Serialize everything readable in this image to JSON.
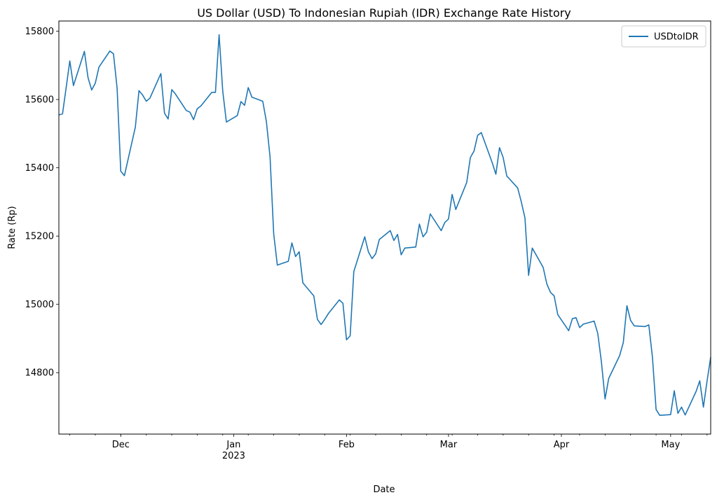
{
  "chart_data": {
    "type": "line",
    "title": "US Dollar (USD) To Indonesian Rupiah (IDR) Exchange Rate History",
    "xlabel": "Date",
    "ylabel": "Rate (Rp)",
    "xlim": [
      "2022-11-14",
      "2023-05-12"
    ],
    "ylim": [
      14620,
      15830
    ],
    "grid": false,
    "legend_position": "top-right",
    "x_ticks": [
      {
        "date": "2022-12-01",
        "label": "Dec",
        "sublabel": ""
      },
      {
        "date": "2023-01-01",
        "label": "Jan",
        "sublabel": "2023"
      },
      {
        "date": "2023-02-01",
        "label": "Feb",
        "sublabel": ""
      },
      {
        "date": "2023-03-01",
        "label": "Mar",
        "sublabel": ""
      },
      {
        "date": "2023-04-01",
        "label": "Apr",
        "sublabel": ""
      },
      {
        "date": "2023-05-01",
        "label": "May",
        "sublabel": ""
      }
    ],
    "y_ticks": [
      14800,
      15000,
      15200,
      15400,
      15600,
      15800
    ],
    "series": [
      {
        "name": "USDtoIDR",
        "color": "#1f77b4",
        "points": [
          [
            "2022-11-14",
            15555
          ],
          [
            "2022-11-15",
            15558
          ],
          [
            "2022-11-16",
            15635
          ],
          [
            "2022-11-17",
            15713
          ],
          [
            "2022-11-18",
            15641
          ],
          [
            "2022-11-21",
            15741
          ],
          [
            "2022-11-22",
            15664
          ],
          [
            "2022-11-23",
            15628
          ],
          [
            "2022-11-24",
            15648
          ],
          [
            "2022-11-25",
            15695
          ],
          [
            "2022-11-28",
            15742
          ],
          [
            "2022-11-29",
            15734
          ],
          [
            "2022-11-30",
            15633
          ],
          [
            "2022-12-01",
            15390
          ],
          [
            "2022-12-02",
            15377
          ],
          [
            "2022-12-05",
            15519
          ],
          [
            "2022-12-06",
            15626
          ],
          [
            "2022-12-07",
            15613
          ],
          [
            "2022-12-08",
            15595
          ],
          [
            "2022-12-09",
            15604
          ],
          [
            "2022-12-12",
            15676
          ],
          [
            "2022-12-13",
            15560
          ],
          [
            "2022-12-14",
            15543
          ],
          [
            "2022-12-15",
            15629
          ],
          [
            "2022-12-16",
            15616
          ],
          [
            "2022-12-19",
            15568
          ],
          [
            "2022-12-20",
            15563
          ],
          [
            "2022-12-21",
            15541
          ],
          [
            "2022-12-22",
            15573
          ],
          [
            "2022-12-23",
            15581
          ],
          [
            "2022-12-26",
            15621
          ],
          [
            "2022-12-27",
            15621
          ],
          [
            "2022-12-28",
            15790
          ],
          [
            "2022-12-29",
            15625
          ],
          [
            "2022-12-30",
            15534
          ],
          [
            "2023-01-02",
            15553
          ],
          [
            "2023-01-03",
            15594
          ],
          [
            "2023-01-04",
            15583
          ],
          [
            "2023-01-05",
            15635
          ],
          [
            "2023-01-06",
            15607
          ],
          [
            "2023-01-09",
            15595
          ],
          [
            "2023-01-10",
            15535
          ],
          [
            "2023-01-11",
            15432
          ],
          [
            "2023-01-12",
            15207
          ],
          [
            "2023-01-13",
            15115
          ],
          [
            "2023-01-16",
            15126
          ],
          [
            "2023-01-17",
            15180
          ],
          [
            "2023-01-18",
            15140
          ],
          [
            "2023-01-19",
            15154
          ],
          [
            "2023-01-20",
            15063
          ],
          [
            "2023-01-23",
            15025
          ],
          [
            "2023-01-24",
            14956
          ],
          [
            "2023-01-25",
            14941
          ],
          [
            "2023-01-26",
            14956
          ],
          [
            "2023-01-27",
            14973
          ],
          [
            "2023-01-30",
            15013
          ],
          [
            "2023-01-31",
            15003
          ],
          [
            "2023-02-01",
            14896
          ],
          [
            "2023-02-02",
            14908
          ],
          [
            "2023-02-03",
            15096
          ],
          [
            "2023-02-06",
            15198
          ],
          [
            "2023-02-07",
            15154
          ],
          [
            "2023-02-08",
            15134
          ],
          [
            "2023-02-09",
            15148
          ],
          [
            "2023-02-10",
            15190
          ],
          [
            "2023-02-13",
            15216
          ],
          [
            "2023-02-14",
            15187
          ],
          [
            "2023-02-15",
            15205
          ],
          [
            "2023-02-16",
            15145
          ],
          [
            "2023-02-17",
            15165
          ],
          [
            "2023-02-20",
            15168
          ],
          [
            "2023-02-21",
            15235
          ],
          [
            "2023-02-22",
            15198
          ],
          [
            "2023-02-23",
            15211
          ],
          [
            "2023-02-24",
            15265
          ],
          [
            "2023-02-27",
            15216
          ],
          [
            "2023-02-28",
            15240
          ],
          [
            "2023-03-01",
            15250
          ],
          [
            "2023-03-02",
            15322
          ],
          [
            "2023-03-03",
            15278
          ],
          [
            "2023-03-06",
            15357
          ],
          [
            "2023-03-07",
            15430
          ],
          [
            "2023-03-08",
            15449
          ],
          [
            "2023-03-09",
            15495
          ],
          [
            "2023-03-10",
            15503
          ],
          [
            "2023-03-13",
            15415
          ],
          [
            "2023-03-14",
            15381
          ],
          [
            "2023-03-15",
            15459
          ],
          [
            "2023-03-16",
            15430
          ],
          [
            "2023-03-17",
            15376
          ],
          [
            "2023-03-20",
            15341
          ],
          [
            "2023-03-21",
            15300
          ],
          [
            "2023-03-22",
            15253
          ],
          [
            "2023-03-23",
            15085
          ],
          [
            "2023-03-24",
            15165
          ],
          [
            "2023-03-27",
            15108
          ],
          [
            "2023-03-28",
            15060
          ],
          [
            "2023-03-29",
            15035
          ],
          [
            "2023-03-30",
            15025
          ],
          [
            "2023-03-31",
            14970
          ],
          [
            "2023-04-03",
            14923
          ],
          [
            "2023-04-04",
            14958
          ],
          [
            "2023-04-05",
            14961
          ],
          [
            "2023-04-06",
            14932
          ],
          [
            "2023-04-07",
            14942
          ],
          [
            "2023-04-10",
            14951
          ],
          [
            "2023-04-11",
            14915
          ],
          [
            "2023-04-12",
            14831
          ],
          [
            "2023-04-13",
            14723
          ],
          [
            "2023-04-14",
            14783
          ],
          [
            "2023-04-17",
            14850
          ],
          [
            "2023-04-18",
            14888
          ],
          [
            "2023-04-19",
            14996
          ],
          [
            "2023-04-20",
            14953
          ],
          [
            "2023-04-21",
            14937
          ],
          [
            "2023-04-24",
            14935
          ],
          [
            "2023-04-25",
            14940
          ],
          [
            "2023-04-26",
            14845
          ],
          [
            "2023-04-27",
            14692
          ],
          [
            "2023-04-28",
            14675
          ],
          [
            "2023-05-01",
            14677
          ],
          [
            "2023-05-02",
            14747
          ],
          [
            "2023-05-03",
            14681
          ],
          [
            "2023-05-04",
            14699
          ],
          [
            "2023-05-05",
            14676
          ],
          [
            "2023-05-08",
            14745
          ],
          [
            "2023-05-09",
            14776
          ],
          [
            "2023-05-10",
            14699
          ],
          [
            "2023-05-11",
            14775
          ],
          [
            "2023-05-12",
            14845
          ]
        ]
      }
    ]
  }
}
